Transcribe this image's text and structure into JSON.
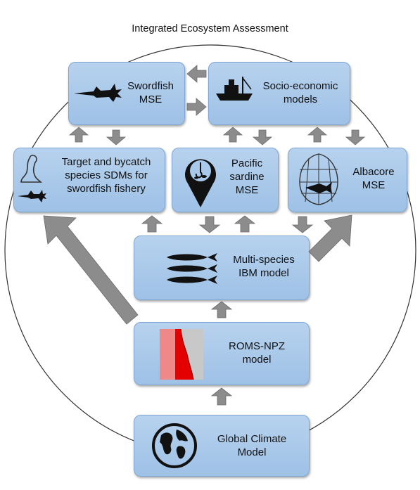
{
  "title": "Integrated Ecosystem Assessment",
  "nodes": {
    "swordfish_mse": {
      "line1": "Swordfish",
      "line2": "MSE"
    },
    "socio_economic": {
      "line1": "Socio-economic",
      "line2": "models"
    },
    "target_bycatch": {
      "line1": "Target and bycatch",
      "line2": "species SDMs for",
      "line3": "swordfish fishery"
    },
    "pacific_sardine": {
      "line1": "Pacific",
      "line2": "sardine",
      "line3": "MSE"
    },
    "albacore": {
      "line1": "Albacore",
      "line2": "MSE"
    },
    "multi_species": {
      "line1": "Multi-species",
      "line2": "IBM model"
    },
    "roms_npz": {
      "line1": "ROMS-NPZ",
      "line2": "model"
    },
    "global_climate": {
      "line1": "Global Climate",
      "line2": "Model"
    }
  },
  "icons": [
    "swordfish-icon",
    "boat-icon",
    "seal-icon",
    "swordfish-small-icon",
    "map-pin-fish-hook-icon",
    "albacore-net-icon",
    "sardines-icon",
    "ocean-map-icon",
    "globe-icon"
  ],
  "colors": {
    "box_fill": "#a9c9ea",
    "box_border": "#7fa6d3",
    "arrow_fill": "#8c8c8c"
  }
}
